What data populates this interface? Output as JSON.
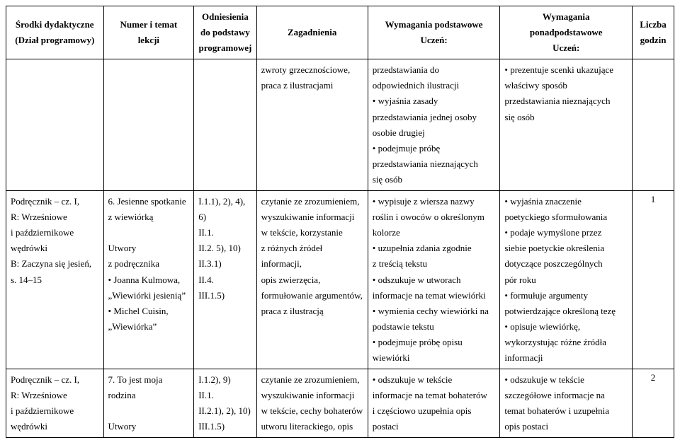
{
  "headers": {
    "c0a": "Środki dydaktyczne",
    "c0b": "(Dział programowy)",
    "c1a": "Numer i temat",
    "c1b": "lekcji",
    "c2a": "Odniesienia",
    "c2b": "do podstawy",
    "c2c": "programowej",
    "c3": "Zagadnienia",
    "c4a": "Wymagania podstawowe",
    "c4b": "Uczeń:",
    "c5a": "Wymagania",
    "c5b": "ponadpodstawowe",
    "c5c": "Uczeń:",
    "c6a": "Liczba",
    "c6b": "godzin"
  },
  "rows": [
    {
      "c0": [],
      "c1": [],
      "c2": [],
      "c3": [
        "zwroty grzecznościowe,",
        "praca z ilustracjami"
      ],
      "c4": [
        "przedstawiania do",
        "odpowiednich ilustracji",
        "• wyjaśnia zasady",
        "przedstawiania jednej osoby",
        "osobie drugiej",
        "• podejmuje próbę",
        "przedstawiania nieznających",
        "się osób"
      ],
      "c5": [
        "• prezentuje scenki ukazujące",
        "właściwy sposób",
        "przedstawiania nieznających",
        "się osób"
      ],
      "c6": ""
    },
    {
      "c0": [
        "Podręcznik – cz. I,",
        "R: Wrześniowe",
        "i październikowe",
        "wędrówki",
        "B: Zaczyna się jesień,",
        "s. 14–15"
      ],
      "c1": [
        "6. Jesienne spotkanie",
        " z wiewiórką",
        "",
        "Utwory",
        "z podręcznika",
        "• Joanna Kulmowa,",
        "„Wiewiórki jesienią”",
        "• Michel Cuisin,",
        "„Wiewiórka”"
      ],
      "c2": [
        "I.1.1), 2), 4), 6)",
        "II.1.",
        "II.2. 5), 10)",
        "II.3.1)",
        "II.4.",
        "III.1.5)"
      ],
      "c3": [
        "czytanie ze zrozumieniem,",
        "wyszukiwanie informacji",
        "w tekście, korzystanie",
        "z różnych źródeł informacji,",
        "opis zwierzęcia,",
        "formułowanie argumentów,",
        "praca z ilustracją"
      ],
      "c4": [
        "• wypisuje z wiersza nazwy",
        "roślin i owoców o określonym",
        "kolorze",
        "• uzupełnia zdania zgodnie",
        "z treścią tekstu",
        "• odszukuje w utworach",
        "informacje na temat wiewiórki",
        "• wymienia cechy wiewiórki na",
        "podstawie tekstu",
        "• podejmuje próbę opisu",
        "wiewiórki"
      ],
      "c5": [
        "• wyjaśnia znaczenie",
        "poetyckiego sformułowania",
        "• podaje wymyślone przez",
        "siebie poetyckie określenia",
        "dotyczące poszczególnych",
        "pór roku",
        "• formułuje argumenty",
        "potwierdzające określoną tezę",
        "• opisuje wiewiórkę,",
        "wykorzystując różne źródła",
        "informacji"
      ],
      "c6": "1"
    },
    {
      "c0": [
        "Podręcznik – cz. I,",
        "R: Wrześniowe",
        "i październikowe",
        "wędrówki"
      ],
      "c1": [
        "7. To jest moja",
        "rodzina",
        "",
        "Utwory"
      ],
      "c2": [
        "I.1.2), 9)",
        "II.1.",
        "II.2.1), 2), 10)",
        "III.1.5)"
      ],
      "c3": [
        "czytanie ze zrozumieniem,",
        "wyszukiwanie informacji",
        "w tekście, cechy bohaterów",
        "utworu literackiego, opis"
      ],
      "c4": [
        "• odszukuje w tekście",
        "informacje na temat bohaterów",
        "i częściowo uzupełnia opis",
        "postaci"
      ],
      "c5": [
        "• odszukuje w tekście",
        "szczegółowe informacje na",
        "temat bohaterów i uzupełnia",
        "opis postaci"
      ],
      "c6": "2"
    }
  ]
}
